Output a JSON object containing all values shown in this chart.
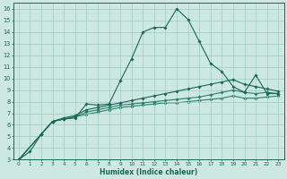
{
  "xlabel": "Humidex (Indice chaleur)",
  "bg_color": "#cce8e0",
  "grid_color": "#9ecec4",
  "line_color_dark": "#1a6658",
  "line_color_mid": "#2a8070",
  "xlim": [
    -0.5,
    23.5
  ],
  "ylim": [
    3,
    16.5
  ],
  "xticks": [
    0,
    1,
    2,
    3,
    4,
    5,
    6,
    7,
    8,
    9,
    10,
    11,
    12,
    13,
    14,
    15,
    16,
    17,
    18,
    19,
    20,
    21,
    22,
    23
  ],
  "yticks": [
    3,
    4,
    5,
    6,
    7,
    8,
    9,
    10,
    11,
    12,
    13,
    14,
    15,
    16
  ],
  "line1_x": [
    0,
    1,
    2,
    3,
    4,
    5,
    6,
    7,
    8,
    9,
    10,
    11,
    12,
    13,
    14,
    15,
    16,
    17,
    18,
    19,
    20,
    21,
    22,
    23
  ],
  "line1_y": [
    3.0,
    3.7,
    5.2,
    6.3,
    6.5,
    6.6,
    7.8,
    7.7,
    7.8,
    9.8,
    11.7,
    14.0,
    14.4,
    14.4,
    16.0,
    15.1,
    13.2,
    11.3,
    10.6,
    9.3,
    8.8,
    10.3,
    8.7,
    8.7
  ],
  "line2_x": [
    0,
    2,
    3,
    4,
    5,
    6,
    7,
    8,
    9,
    10,
    11,
    12,
    13,
    14,
    15,
    16,
    17,
    18,
    19,
    20,
    21,
    22,
    23
  ],
  "line2_y": [
    3.0,
    5.2,
    6.3,
    6.6,
    6.8,
    7.3,
    7.5,
    7.7,
    7.9,
    8.1,
    8.3,
    8.5,
    8.7,
    8.9,
    9.1,
    9.3,
    9.5,
    9.7,
    9.9,
    9.5,
    9.3,
    9.1,
    8.9
  ],
  "line3_x": [
    0,
    2,
    3,
    4,
    5,
    6,
    7,
    8,
    9,
    10,
    11,
    12,
    13,
    14,
    15,
    16,
    17,
    18,
    19,
    20,
    21,
    22,
    23
  ],
  "line3_y": [
    3.0,
    5.2,
    6.3,
    6.5,
    6.7,
    7.1,
    7.3,
    7.5,
    7.7,
    7.8,
    7.9,
    8.0,
    8.1,
    8.2,
    8.3,
    8.4,
    8.6,
    8.8,
    9.0,
    8.8,
    8.7,
    8.8,
    8.7
  ],
  "line4_x": [
    0,
    2,
    3,
    4,
    5,
    6,
    7,
    8,
    9,
    10,
    11,
    12,
    13,
    14,
    15,
    16,
    17,
    18,
    19,
    20,
    21,
    22,
    23
  ],
  "line4_y": [
    3.0,
    5.2,
    6.3,
    6.5,
    6.7,
    6.9,
    7.1,
    7.3,
    7.5,
    7.6,
    7.7,
    7.8,
    7.9,
    7.9,
    8.0,
    8.1,
    8.2,
    8.3,
    8.5,
    8.3,
    8.3,
    8.4,
    8.5
  ]
}
